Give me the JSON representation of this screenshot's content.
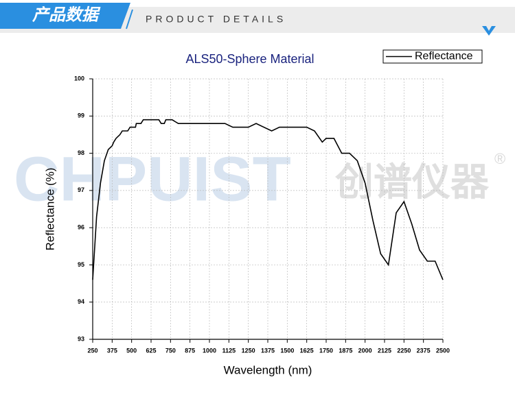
{
  "header": {
    "title": "产品数据",
    "subtitle": "PRODUCT DETAILS"
  },
  "watermark": {
    "brand": "CHPUIST",
    "chinese": "创谱仪器",
    "mark": "®"
  },
  "chart_data": {
    "type": "line",
    "title": "ALS50-Sphere Material",
    "x_label": "Wavelength (nm)",
    "y_label": "Reflectance (%)",
    "x": [
      250,
      275,
      300,
      325,
      350,
      375,
      385,
      400,
      425,
      440,
      475,
      490,
      525,
      530,
      560,
      575,
      650,
      675,
      690,
      710,
      720,
      760,
      800,
      1100,
      1150,
      1250,
      1300,
      1400,
      1450,
      1625,
      1675,
      1725,
      1750,
      1800,
      1850,
      1900,
      1950,
      2000,
      2050,
      2100,
      2150,
      2200,
      2250,
      2300,
      2350,
      2400,
      2450,
      2500
    ],
    "series": [
      {
        "name": "Reflectance",
        "color": "#000000",
        "values": [
          94.6,
          96.3,
          97.2,
          97.8,
          98.1,
          98.2,
          98.3,
          98.4,
          98.5,
          98.6,
          98.6,
          98.7,
          98.7,
          98.8,
          98.8,
          98.9,
          98.9,
          98.9,
          98.8,
          98.8,
          98.9,
          98.9,
          98.8,
          98.8,
          98.7,
          98.7,
          98.8,
          98.6,
          98.7,
          98.7,
          98.6,
          98.3,
          98.4,
          98.4,
          98.0,
          98.0,
          97.8,
          97.2,
          96.2,
          95.3,
          95.0,
          96.4,
          96.7,
          96.1,
          95.4,
          95.1,
          95.1,
          94.6
        ]
      }
    ],
    "xlim": [
      250,
      2500
    ],
    "xticks": [
      250,
      375,
      500,
      625,
      750,
      875,
      1000,
      1125,
      1250,
      1375,
      1500,
      1625,
      1750,
      1875,
      2000,
      2125,
      2250,
      2375,
      2500
    ],
    "ylim": [
      93,
      100
    ],
    "yticks": [
      93,
      94,
      95,
      96,
      97,
      98,
      99,
      100
    ],
    "grid": true,
    "legend": "top-right"
  }
}
